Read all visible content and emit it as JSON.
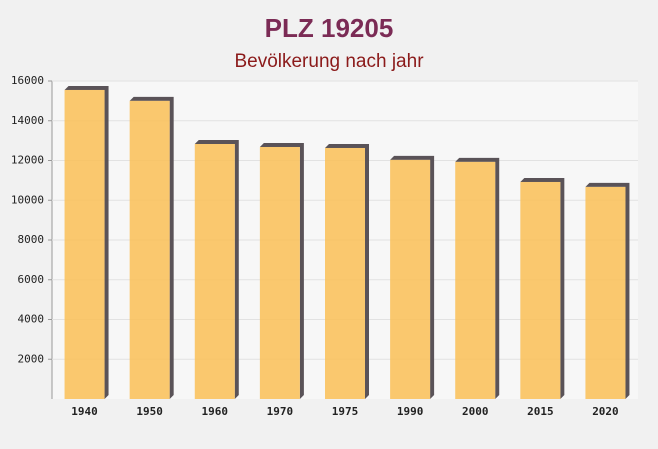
{
  "chart_data": {
    "type": "bar",
    "title": "PLZ 19205",
    "subtitle": "Bevölkerung nach jahr",
    "categories": [
      "1940",
      "1950",
      "1960",
      "1970",
      "1975",
      "1990",
      "2000",
      "2015",
      "2020"
    ],
    "values": [
      15550,
      15000,
      12830,
      12680,
      12630,
      12030,
      11930,
      10920,
      10670
    ],
    "color": "#f9c25e",
    "ylim": [
      0,
      16000
    ],
    "yticks": [
      2000,
      4000,
      6000,
      8000,
      10000,
      12000,
      14000,
      16000
    ],
    "grid": true
  }
}
